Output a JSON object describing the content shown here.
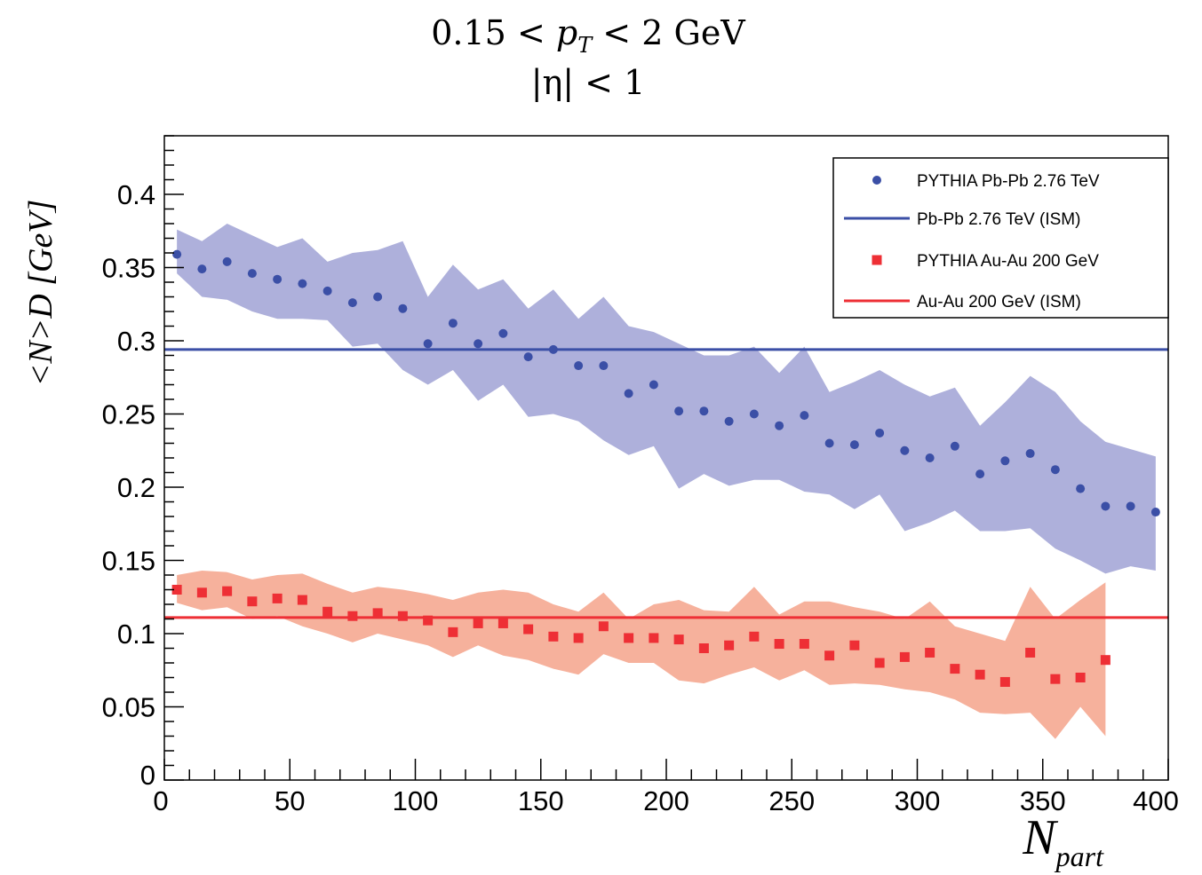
{
  "header": {
    "cut_pt_line": "0.15 < pT < 2 GeV",
    "cut_pt": {
      "low": "0.15 < ",
      "var": "p",
      "sub": "T",
      "high": " < 2 GeV"
    },
    "cut_eta": "|η| < 1"
  },
  "colors": {
    "pbpb": "#3b4fa6",
    "pbpb_band": "#aeb0db",
    "auau": "#ee2f35",
    "auau_band": "#f6b19c",
    "axis": "#000000"
  },
  "chart_data": {
    "type": "scatter",
    "title": "0.15 < pT < 2 GeV, |η| < 1",
    "xlabel": "N",
    "xlabel_sub": "part",
    "ylabel": "<N>D [GeV]",
    "xlim": [
      0,
      400
    ],
    "ylim": [
      0,
      0.44
    ],
    "x_ticks": [
      "0",
      "50",
      "100",
      "150",
      "200",
      "250",
      "300",
      "350",
      "400"
    ],
    "y_ticks": [
      "0",
      "0.05",
      "0.1",
      "0.15",
      "0.2",
      "0.25",
      "0.3",
      "0.35",
      "0.4"
    ],
    "legend_position": "top-right",
    "series": [
      {
        "name": "PYTHIA Pb-Pb 2.76 TeV",
        "marker": "circle",
        "x": [
          5,
          15,
          25,
          35,
          45,
          55,
          65,
          75,
          85,
          95,
          105,
          115,
          125,
          135,
          145,
          155,
          165,
          175,
          185,
          195,
          205,
          215,
          225,
          235,
          245,
          255,
          265,
          275,
          285,
          295,
          305,
          315,
          325,
          335,
          345,
          355,
          365,
          375,
          385,
          395
        ],
        "y": [
          0.359,
          0.349,
          0.354,
          0.346,
          0.342,
          0.339,
          0.334,
          0.326,
          0.33,
          0.322,
          0.298,
          0.312,
          0.298,
          0.305,
          0.289,
          0.294,
          0.283,
          0.283,
          0.264,
          0.27,
          0.252,
          0.252,
          0.245,
          0.25,
          0.242,
          0.249,
          0.23,
          0.229,
          0.237,
          0.225,
          0.22,
          0.228,
          0.209,
          0.218,
          0.223,
          0.212,
          0.199,
          0.187,
          0.187,
          0.183
        ],
        "band_upper": [
          0.376,
          0.368,
          0.38,
          0.372,
          0.364,
          0.37,
          0.354,
          0.36,
          0.362,
          0.368,
          0.33,
          0.352,
          0.335,
          0.342,
          0.322,
          0.335,
          0.315,
          0.33,
          0.31,
          0.306,
          0.298,
          0.29,
          0.29,
          0.296,
          0.278,
          0.296,
          0.265,
          0.272,
          0.28,
          0.27,
          0.262,
          0.268,
          0.242,
          0.258,
          0.276,
          0.265,
          0.245,
          0.231,
          0.226,
          0.221
        ],
        "band_lower": [
          0.346,
          0.33,
          0.328,
          0.32,
          0.315,
          0.315,
          0.314,
          0.296,
          0.298,
          0.28,
          0.27,
          0.28,
          0.259,
          0.27,
          0.248,
          0.25,
          0.245,
          0.232,
          0.222,
          0.228,
          0.199,
          0.209,
          0.201,
          0.205,
          0.205,
          0.197,
          0.195,
          0.185,
          0.195,
          0.17,
          0.176,
          0.184,
          0.17,
          0.17,
          0.172,
          0.158,
          0.15,
          0.141,
          0.146,
          0.143
        ]
      },
      {
        "name": "Pb-Pb 2.76 TeV (ISM)",
        "type": "hline",
        "y": 0.294
      },
      {
        "name": "PYTHIA Au-Au 200 GeV",
        "marker": "square",
        "x": [
          5,
          15,
          25,
          35,
          45,
          55,
          65,
          75,
          85,
          95,
          105,
          115,
          125,
          135,
          145,
          155,
          165,
          175,
          185,
          195,
          205,
          215,
          225,
          235,
          245,
          255,
          265,
          275,
          285,
          295,
          305,
          315,
          325,
          335,
          345,
          355,
          365,
          375
        ],
        "y": [
          0.13,
          0.128,
          0.129,
          0.122,
          0.124,
          0.123,
          0.115,
          0.112,
          0.114,
          0.112,
          0.109,
          0.101,
          0.107,
          0.107,
          0.103,
          0.098,
          0.097,
          0.105,
          0.097,
          0.097,
          0.096,
          0.09,
          0.092,
          0.098,
          0.093,
          0.093,
          0.085,
          0.092,
          0.08,
          0.084,
          0.087,
          0.076,
          0.072,
          0.067,
          0.087,
          0.069,
          0.07,
          0.082
        ],
        "band_upper": [
          0.14,
          0.143,
          0.142,
          0.137,
          0.14,
          0.141,
          0.134,
          0.128,
          0.132,
          0.13,
          0.127,
          0.123,
          0.128,
          0.13,
          0.128,
          0.12,
          0.115,
          0.128,
          0.11,
          0.12,
          0.123,
          0.116,
          0.115,
          0.132,
          0.113,
          0.122,
          0.122,
          0.118,
          0.115,
          0.11,
          0.122,
          0.105,
          0.1,
          0.095,
          0.132,
          0.11,
          0.123,
          0.135
        ],
        "band_lower": [
          0.121,
          0.116,
          0.118,
          0.11,
          0.112,
          0.105,
          0.1,
          0.094,
          0.1,
          0.096,
          0.092,
          0.084,
          0.092,
          0.085,
          0.082,
          0.076,
          0.072,
          0.086,
          0.08,
          0.08,
          0.068,
          0.066,
          0.072,
          0.077,
          0.068,
          0.075,
          0.065,
          0.066,
          0.065,
          0.062,
          0.06,
          0.055,
          0.046,
          0.045,
          0.046,
          0.028,
          0.05,
          0.03
        ]
      },
      {
        "name": "Au-Au 200 GeV (ISM)",
        "type": "hline",
        "y": 0.111
      }
    ]
  }
}
